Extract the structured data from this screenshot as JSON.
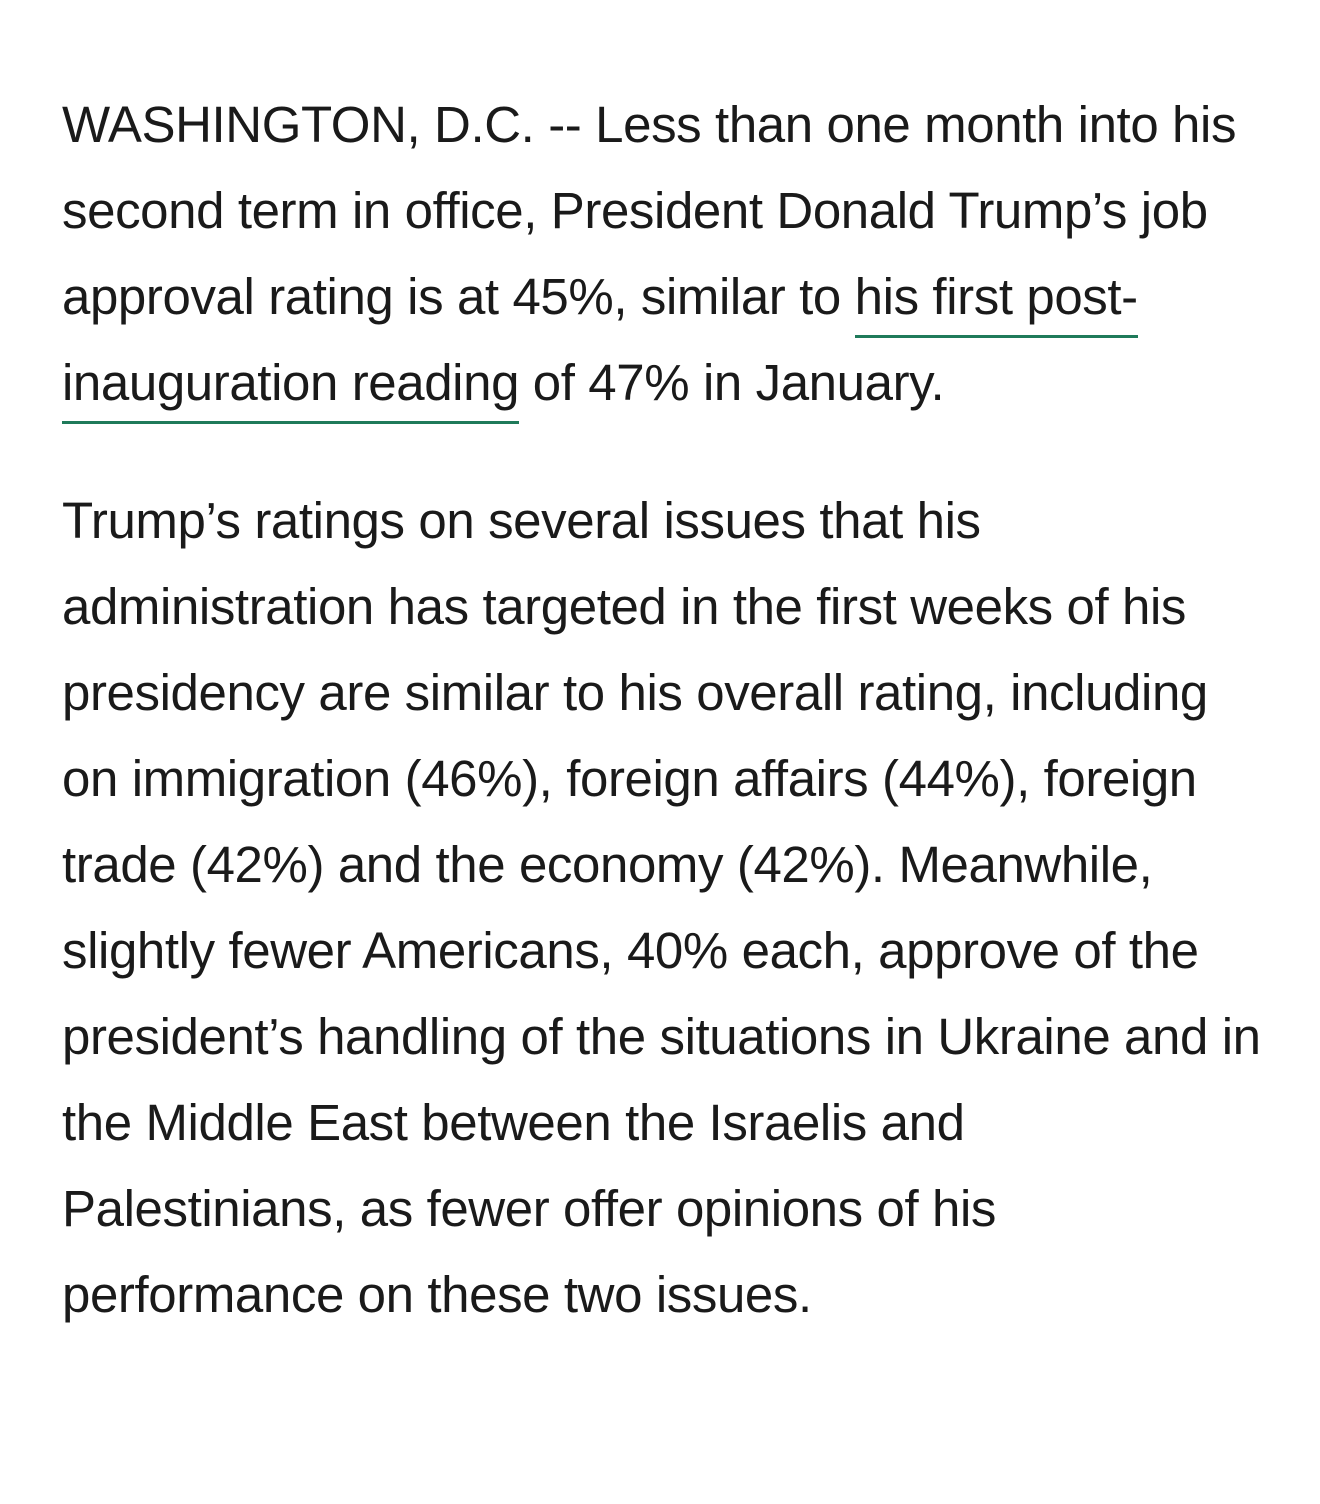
{
  "article": {
    "paragraph1": {
      "before_link": "WASHINGTON, D.C. -- Less than one month into his second term in office, President Donald Trump’s job approval rating is at 45%, similar to ",
      "link_text": "his first post-inauguration reading",
      "after_link": " of 47% in January."
    },
    "paragraph2": "Trump’s ratings on several issues that his administration has targeted in the first weeks of his presidency are similar to his overall rating, including on immigration (46%), foreign affairs (44%), foreign trade (42%) and the economy (42%). Meanwhile, slightly fewer Americans, 40% each, approve of the president’s handling of the situations in Ukraine and in the Middle East between the Israelis and Palestinians, as fewer offer opinions of his performance on these two issues."
  },
  "colors": {
    "text": "#1a1a1a",
    "link_underline": "#1f7a5a",
    "background": "#ffffff"
  }
}
